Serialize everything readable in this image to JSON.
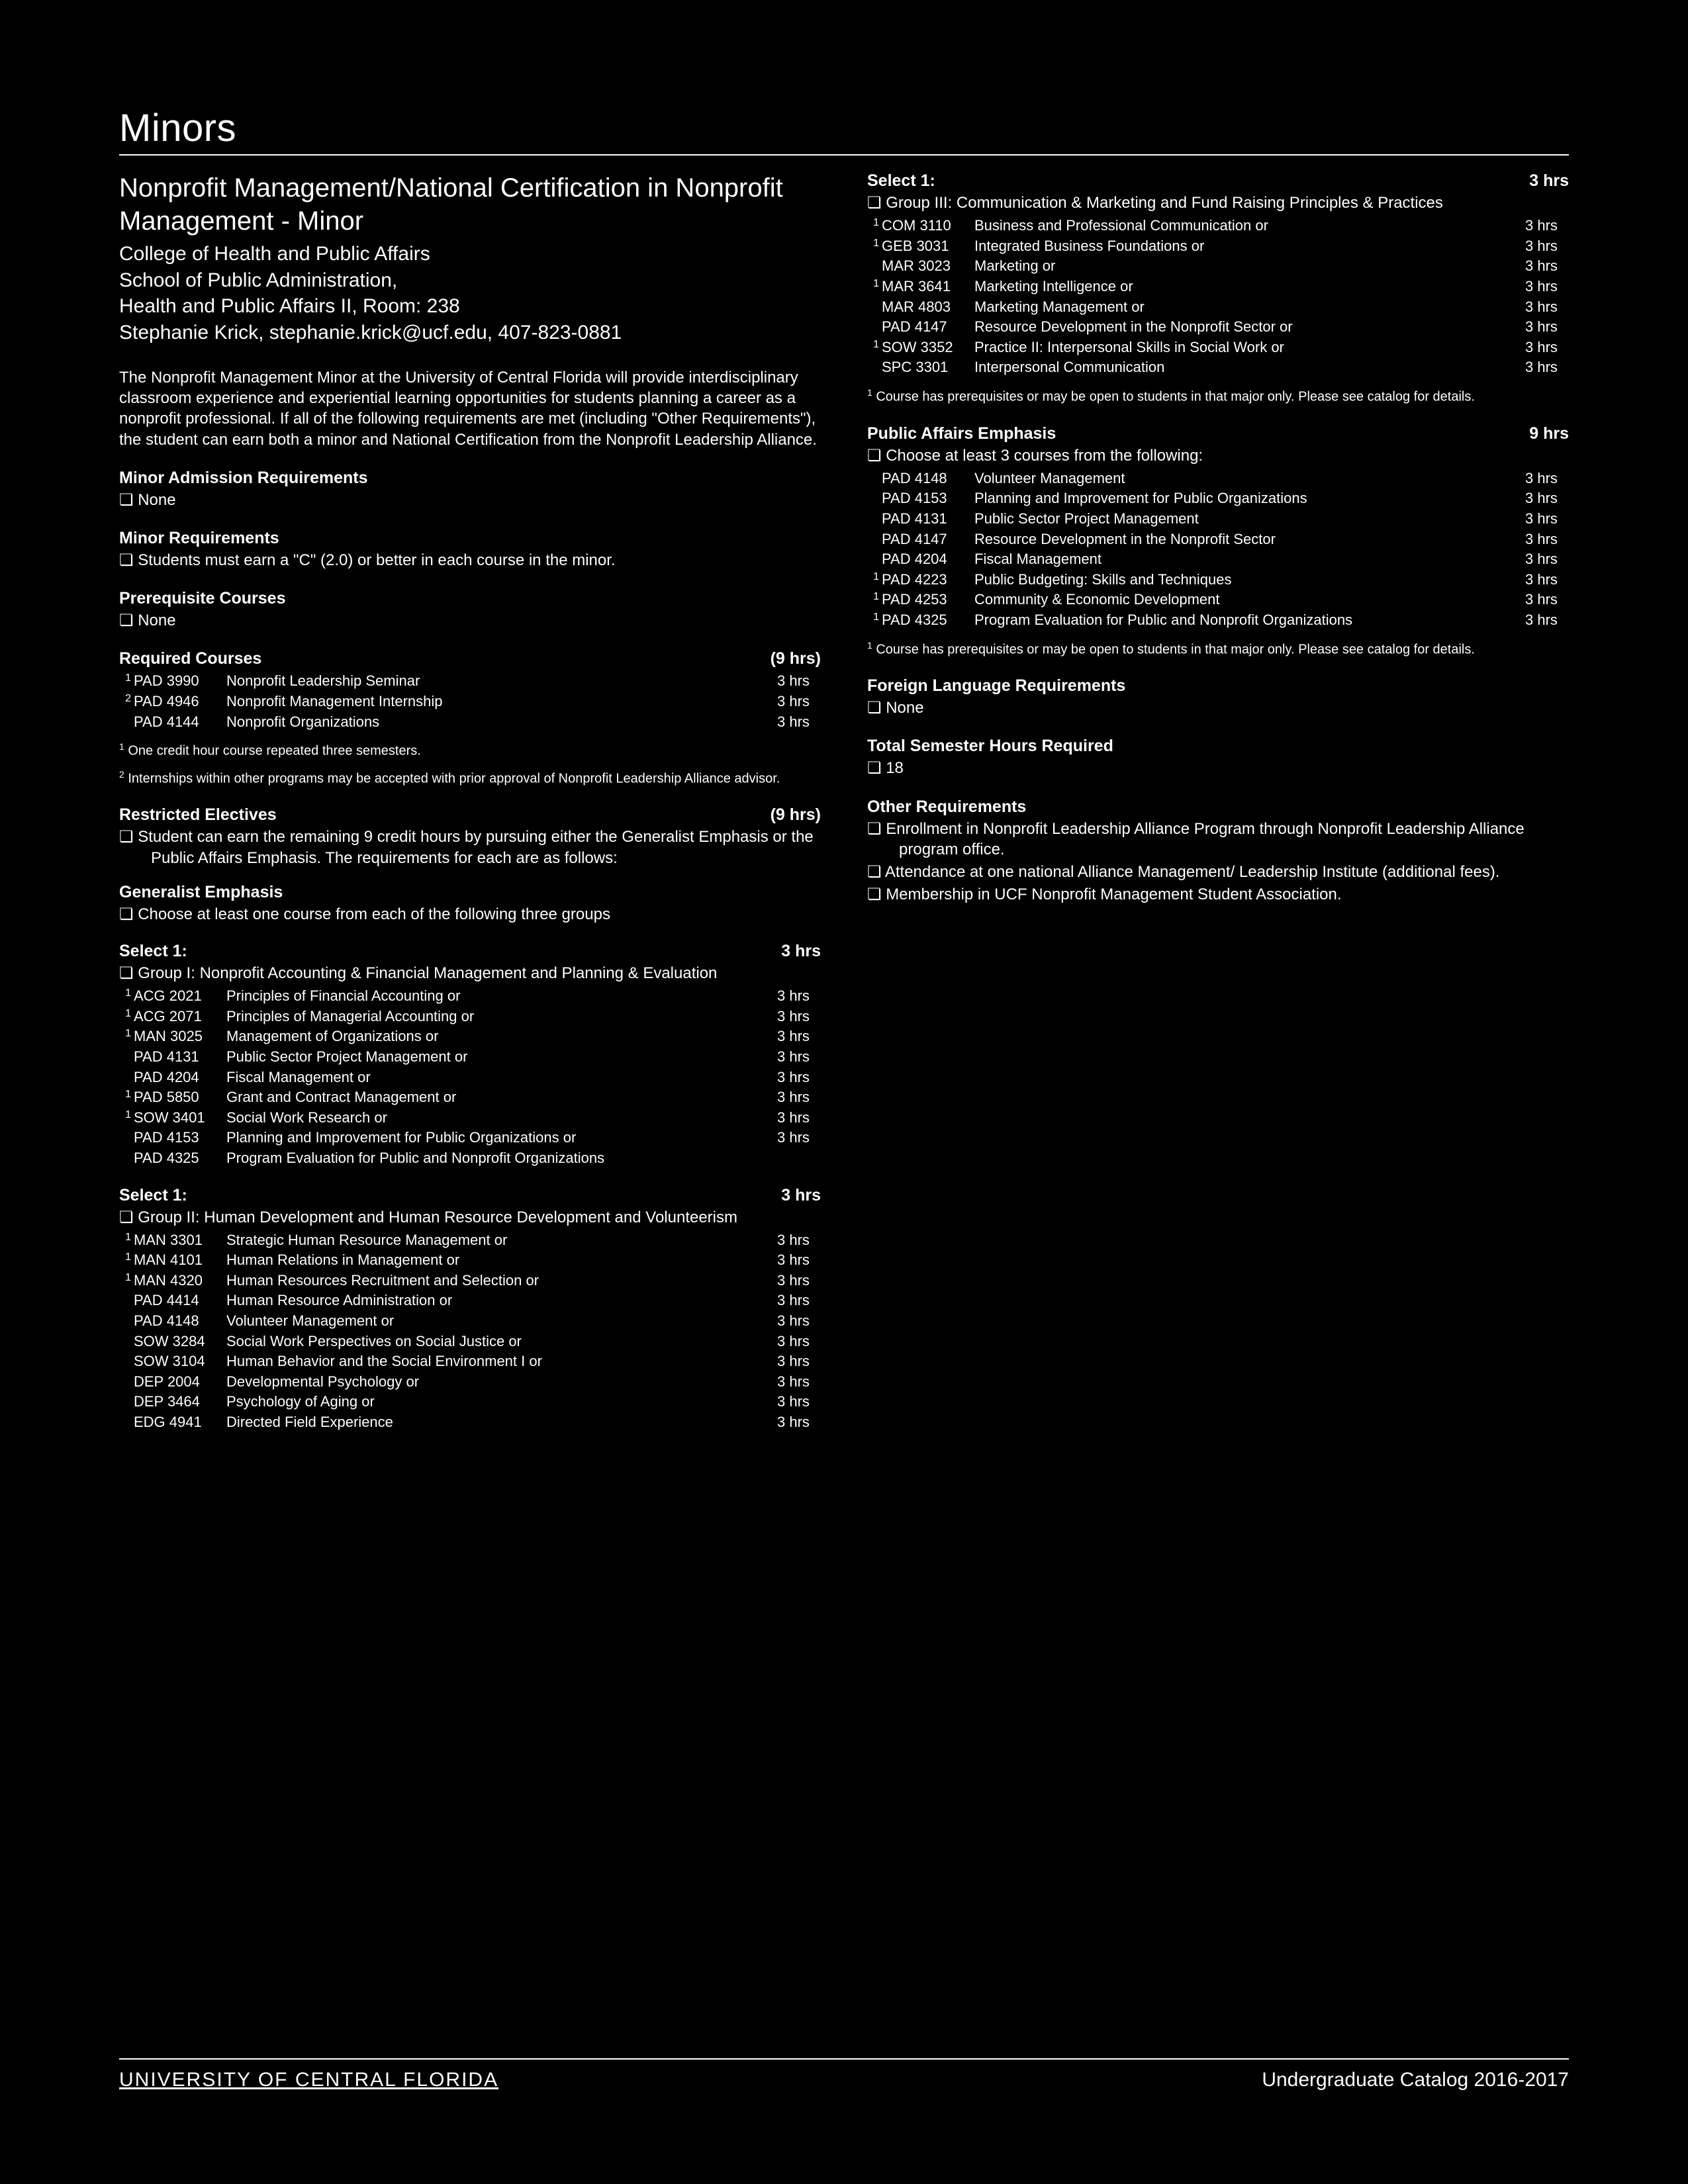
{
  "page_title": "Minors",
  "program_title": "Nonprofit Management/National Certification in Nonprofit Management - Minor",
  "meta": {
    "college": "College of Health and Public Affairs",
    "school": "School of Public Administration,",
    "location": "Health and Public Affairs II, Room: 238",
    "contact": "Stephanie Krick, stephanie.krick@ucf.edu, 407-823-0881"
  },
  "intro": "The Nonprofit Management Minor at the University of Central Florida will provide interdisciplinary classroom experience and experiential learning opportunities for students planning a career as a nonprofit professional. If all of the following requirements are met (including \"Other Requirements\"), the student can earn both a minor and National Certification from the Nonprofit Leadership Alliance.",
  "sections": {
    "admission": {
      "head": "Minor Admission Requirements",
      "bullets": [
        "None"
      ]
    },
    "minor_req": {
      "head": "Minor Requirements",
      "bullets": [
        "Students must earn a \"C\" (2.0) or better in each course in the minor."
      ]
    },
    "prereq": {
      "head": "Prerequisite Courses",
      "bullets": [
        "None"
      ]
    },
    "required": {
      "head": "Required Courses",
      "hrs": "(9 hrs)",
      "rows": [
        {
          "sup": "1",
          "code": "PAD 3990",
          "title": "Nonprofit Leadership Seminar",
          "hrs": "3 hrs"
        },
        {
          "sup": "2",
          "code": "PAD 4946",
          "title": "Nonprofit Management Internship",
          "hrs": "3 hrs"
        },
        {
          "sup": "",
          "code": "PAD 4144",
          "title": "Nonprofit Organizations",
          "hrs": "3 hrs"
        }
      ],
      "footnotes": [
        "One credit hour course repeated three semesters.",
        "Internships within other programs may be accepted with prior approval of Nonprofit Leadership Alliance advisor."
      ]
    },
    "electives": {
      "head": "Restricted Electives",
      "hrs": "(9 hrs)",
      "bullets": [
        "Student can earn the remaining 9 credit hours by pursuing either the Generalist Emphasis or the Public Affairs Emphasis. The requirements for each are as follows:"
      ]
    },
    "generalist": {
      "head": "Generalist Emphasis",
      "bullets": [
        "Choose at least one course from each of the following three groups"
      ]
    },
    "group1": {
      "select": "Select 1:",
      "hrs": "3 hrs",
      "label": "Group I: Nonprofit Accounting & Financial Management and Planning & Evaluation",
      "rows": [
        {
          "sup": "1",
          "code": "ACG 2021",
          "title": "Principles of Financial Accounting or",
          "hrs": "3 hrs"
        },
        {
          "sup": "1",
          "code": "ACG 2071",
          "title": "Principles of Managerial Accounting or",
          "hrs": "3 hrs"
        },
        {
          "sup": "1",
          "code": "MAN 3025",
          "title": "Management of Organizations or",
          "hrs": "3 hrs"
        },
        {
          "sup": "",
          "code": "PAD 4131",
          "title": "Public Sector Project Management or",
          "hrs": "3 hrs"
        },
        {
          "sup": "",
          "code": "PAD 4204",
          "title": "Fiscal Management or",
          "hrs": "3 hrs"
        },
        {
          "sup": "1",
          "code": "PAD 5850",
          "title": "Grant and Contract Management or",
          "hrs": "3 hrs"
        },
        {
          "sup": "1",
          "code": "SOW 3401",
          "title": "Social Work Research or",
          "hrs": "3 hrs"
        },
        {
          "sup": "",
          "code": "PAD 4153",
          "title": "Planning and Improvement for Public Organizations or",
          "hrs": "3 hrs"
        },
        {
          "sup": "",
          "code": "PAD 4325",
          "title": "Program Evaluation for Public and Nonprofit Organizations",
          "hrs": ""
        }
      ]
    },
    "group2": {
      "select": "Select 1:",
      "hrs": "3 hrs",
      "label": "Group II: Human Development and Human Resource Development and Volunteerism",
      "rows": [
        {
          "sup": "1",
          "code": "MAN 3301",
          "title": "Strategic Human Resource Management or",
          "hrs": "3 hrs"
        },
        {
          "sup": "1",
          "code": "MAN 4101",
          "title": "Human Relations in Management or",
          "hrs": "3 hrs"
        },
        {
          "sup": "1",
          "code": "MAN 4320",
          "title": "Human Resources Recruitment and Selection or",
          "hrs": "3 hrs"
        },
        {
          "sup": "",
          "code": "PAD 4414",
          "title": "Human Resource Administration or",
          "hrs": "3 hrs"
        },
        {
          "sup": "",
          "code": "PAD 4148",
          "title": "Volunteer Management or",
          "hrs": "3 hrs"
        },
        {
          "sup": "",
          "code": "SOW 3284",
          "title": "Social Work Perspectives on Social Justice or",
          "hrs": "3 hrs"
        },
        {
          "sup": "",
          "code": "SOW 3104",
          "title": "Human Behavior and the Social Environment I or",
          "hrs": "3 hrs"
        },
        {
          "sup": "",
          "code": "DEP 2004",
          "title": "Developmental Psychology or",
          "hrs": "3 hrs"
        },
        {
          "sup": "",
          "code": "DEP 3464",
          "title": "Psychology of Aging or",
          "hrs": "3 hrs"
        },
        {
          "sup": "",
          "code": "EDG 4941",
          "title": "Directed Field Experience",
          "hrs": "3 hrs"
        }
      ]
    },
    "group3": {
      "select": "Select 1:",
      "hrs": "3 hrs",
      "label": "Group III: Communication & Marketing and Fund Raising Principles & Practices",
      "rows": [
        {
          "sup": "1",
          "code": "COM 3110",
          "title": "Business and Professional Communication or",
          "hrs": "3 hrs"
        },
        {
          "sup": "1",
          "code": "GEB 3031",
          "title": "Integrated Business Foundations or",
          "hrs": "3 hrs"
        },
        {
          "sup": "",
          "code": "MAR 3023",
          "title": "Marketing or",
          "hrs": "3 hrs"
        },
        {
          "sup": "1",
          "code": "MAR 3641",
          "title": "Marketing Intelligence or",
          "hrs": "3 hrs"
        },
        {
          "sup": "",
          "code": "MAR 4803",
          "title": "Marketing Management or",
          "hrs": "3 hrs"
        },
        {
          "sup": "",
          "code": "PAD 4147",
          "title": "Resource Development in the Nonprofit Sector or",
          "hrs": "3 hrs"
        },
        {
          "sup": "1",
          "code": "SOW 3352",
          "title": "Practice II: Interpersonal Skills in Social Work or",
          "hrs": "3 hrs"
        },
        {
          "sup": "",
          "code": "SPC 3301",
          "title": "Interpersonal Communication",
          "hrs": "3 hrs"
        }
      ],
      "footnote": "Course has prerequisites or may be open to students in that major only. Please see catalog for details."
    },
    "public_affairs": {
      "head": "Public Affairs Emphasis",
      "hrs": "9 hrs",
      "bullets": [
        "Choose at least 3 courses from the following:"
      ],
      "rows": [
        {
          "sup": "",
          "code": "PAD 4148",
          "title": "Volunteer Management",
          "hrs": "3 hrs"
        },
        {
          "sup": "",
          "code": "PAD 4153",
          "title": "Planning and Improvement for Public Organizations",
          "hrs": "3 hrs"
        },
        {
          "sup": "",
          "code": "PAD 4131",
          "title": "Public Sector Project Management",
          "hrs": "3 hrs"
        },
        {
          "sup": "",
          "code": "PAD 4147",
          "title": "Resource Development in the Nonprofit Sector",
          "hrs": "3 hrs"
        },
        {
          "sup": "",
          "code": "PAD 4204",
          "title": "Fiscal Management",
          "hrs": "3 hrs"
        },
        {
          "sup": "1",
          "code": "PAD 4223",
          "title": "Public Budgeting: Skills and Techniques",
          "hrs": "3 hrs"
        },
        {
          "sup": "1",
          "code": "PAD 4253",
          "title": "Community & Economic Development",
          "hrs": "3 hrs"
        },
        {
          "sup": "1",
          "code": "PAD 4325",
          "title": "Program Evaluation for Public and Nonprofit Organizations",
          "hrs": "3 hrs"
        }
      ],
      "footnote": "Course has prerequisites or may be open to students in that major only. Please see catalog for details."
    },
    "foreign": {
      "head": "Foreign Language Requirements",
      "bullets": [
        "None"
      ]
    },
    "total": {
      "head": "Total Semester Hours Required",
      "bullets": [
        "18"
      ]
    },
    "other": {
      "head": "Other Requirements",
      "bullets": [
        "Enrollment in Nonprofit Leadership Alliance Program through Nonprofit Leadership Alliance program office.",
        "Attendance at one national Alliance Management/ Leadership Institute (additional fees).",
        "Membership in UCF Nonprofit Management Student Association."
      ]
    }
  },
  "footer": {
    "left": "UNIVERSITY OF CENTRAL FLORIDA",
    "right": "Undergraduate Catalog 2016-2017"
  }
}
